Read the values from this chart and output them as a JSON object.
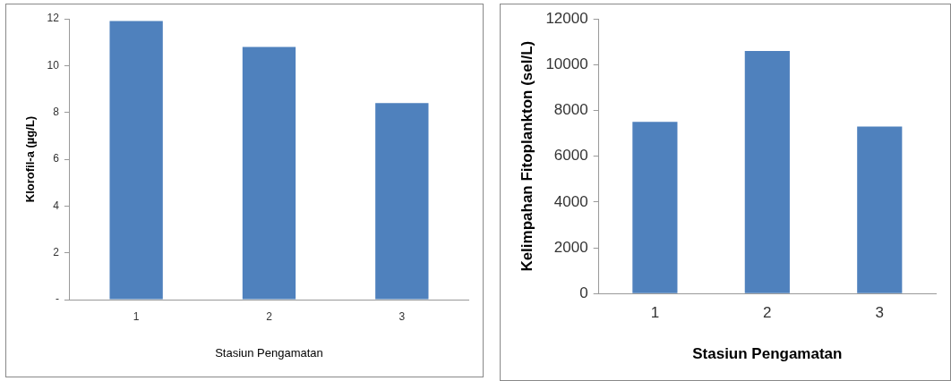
{
  "chart_data": [
    {
      "type": "bar",
      "xlabel": "Stasiun Pengamatan",
      "ylabel": "Klorofil-a (µg/L)",
      "categories": [
        "1",
        "2",
        "3"
      ],
      "values": [
        11.9,
        10.8,
        8.4
      ],
      "color": "#4f81bd",
      "ylim": [
        0,
        12
      ],
      "yticks": [
        {
          "value": 0,
          "label": "-"
        },
        2,
        4,
        6,
        8,
        10,
        12
      ],
      "grid": false
    },
    {
      "type": "bar",
      "xlabel": "Stasiun Pengamatan",
      "ylabel": "Kelimpahan Fitoplankton (sel/L)",
      "categories": [
        "1",
        "2",
        "3"
      ],
      "values": [
        7500,
        10600,
        7300
      ],
      "color": "#4f81bd",
      "ylim": [
        0,
        12000
      ],
      "yticks": [
        0,
        2000,
        4000,
        6000,
        8000,
        10000,
        12000
      ],
      "grid": false
    }
  ]
}
